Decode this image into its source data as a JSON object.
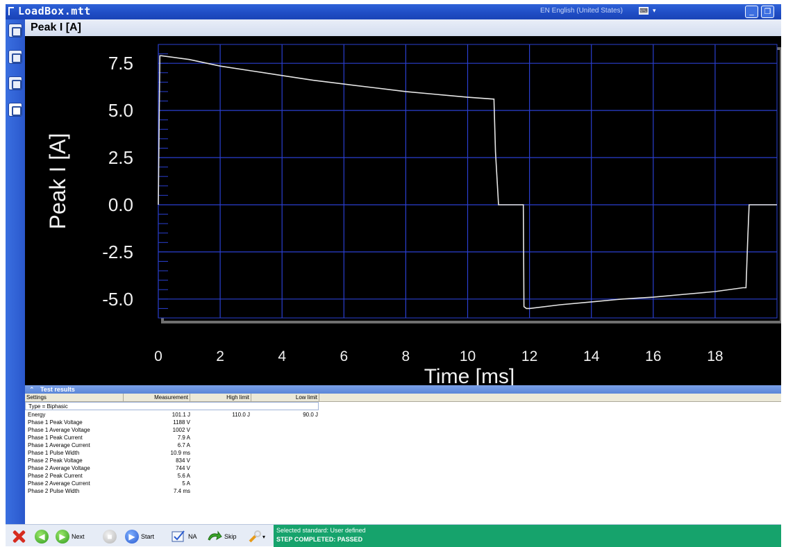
{
  "window": {
    "title": "LoadBox.mtt",
    "language": "EN English (United States)"
  },
  "panel": {
    "title": "Peak I [A]"
  },
  "chart_data": {
    "type": "line",
    "xlabel": "Time [ms]",
    "ylabel": "Peak I [A]",
    "xlim": [
      0,
      20
    ],
    "ylim": [
      -6,
      8.5
    ],
    "xticks": [
      0,
      2,
      4,
      6,
      8,
      10,
      12,
      14,
      16,
      18
    ],
    "yticks": [
      7.5,
      5.0,
      2.5,
      0.0,
      -2.5,
      -5.0
    ],
    "xtick_labels": [
      "0",
      "2",
      "4",
      "6",
      "8",
      "10",
      "12",
      "14",
      "16",
      "18"
    ],
    "ytick_labels": [
      "7.5",
      "5.0",
      "2.5",
      "0.0",
      "-2.5",
      "-5.0"
    ],
    "grid": true,
    "series": [
      {
        "color": "#e6e6e6",
        "x": [
          0,
          0.05,
          0.1,
          1,
          2,
          3,
          4,
          5,
          6,
          7,
          8,
          9,
          10,
          10.85,
          10.9,
          11.0,
          11.0,
          11.8,
          11.82,
          11.9,
          12,
          13,
          14,
          15,
          16,
          17,
          18,
          18.9,
          19.0,
          19.05,
          19.1,
          20
        ],
        "y": [
          0,
          7.9,
          7.9,
          7.7,
          7.35,
          7.1,
          6.85,
          6.6,
          6.4,
          6.2,
          6.0,
          5.85,
          5.7,
          5.6,
          2.8,
          0,
          0,
          0,
          -5.4,
          -5.5,
          -5.5,
          -5.3,
          -5.15,
          -5.0,
          -4.9,
          -4.75,
          -4.6,
          -4.4,
          -4.4,
          -2.0,
          0,
          0
        ]
      }
    ]
  },
  "results": {
    "title": "Test results",
    "columns": [
      "Settings",
      "Measurement",
      "High limit",
      "Low limit"
    ],
    "type_row": "Type = Biphasic",
    "rows": [
      {
        "name": "Energy",
        "measurement": "101.1 J",
        "high": "110.0 J",
        "low": "90.0 J"
      },
      {
        "name": "Phase 1 Peak Voltage",
        "measurement": "1188 V",
        "high": "",
        "low": ""
      },
      {
        "name": "Phase 1 Average Voltage",
        "measurement": "1002 V",
        "high": "",
        "low": ""
      },
      {
        "name": "Phase 1 Peak Current",
        "measurement": "7.9 A",
        "high": "",
        "low": ""
      },
      {
        "name": "Phase 1 Average Current",
        "measurement": "6.7 A",
        "high": "",
        "low": ""
      },
      {
        "name": "Phase 1 Pulse Width",
        "measurement": "10.9 ms",
        "high": "",
        "low": ""
      },
      {
        "name": "Phase 2 Peak Voltage",
        "measurement": "834 V",
        "high": "",
        "low": ""
      },
      {
        "name": "Phase 2 Average Voltage",
        "measurement": "744 V",
        "high": "",
        "low": ""
      },
      {
        "name": "Phase 2 Peak Current",
        "measurement": "5.6 A",
        "high": "",
        "low": ""
      },
      {
        "name": "Phase 2 Average Current",
        "measurement": "5 A",
        "high": "",
        "low": ""
      },
      {
        "name": "Phase 2 Pulse Width",
        "measurement": "7.4 ms",
        "high": "",
        "low": ""
      }
    ]
  },
  "toolbar": {
    "next_label": "Next",
    "start_label": "Start",
    "na_label": "NA",
    "skip_label": "Skip"
  },
  "status": {
    "standard": "Selected standard: User defined",
    "step": "STEP COMPLETED: PASSED"
  },
  "colors": {
    "titlebar": "#1f4cc4",
    "grid": "#2a3fd0",
    "status_bg": "#16a36c",
    "trace": "#e6e6e6"
  }
}
